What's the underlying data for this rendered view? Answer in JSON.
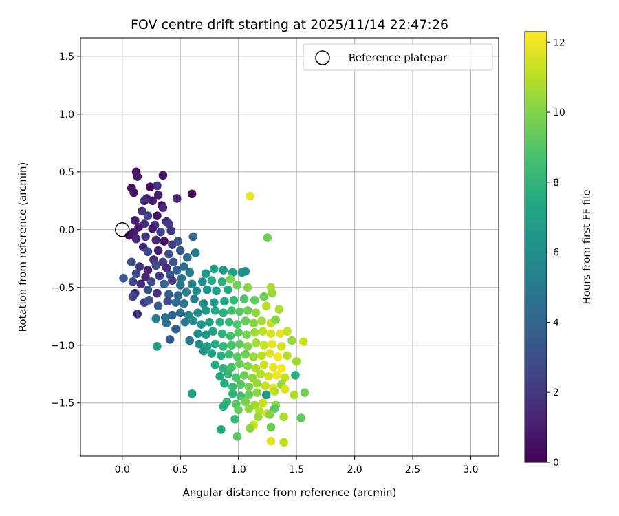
{
  "chart_data": {
    "type": "scatter",
    "title": "FOV centre drift starting at 2025/11/14 22:47:26",
    "xlabel": "Angular distance from reference (arcmin)",
    "ylabel": "Rotation from reference (arcmin)",
    "xlim": [
      -0.36,
      3.24
    ],
    "ylim": [
      -1.96,
      1.66
    ],
    "xticks": [
      0.0,
      0.5,
      1.0,
      1.5,
      2.0,
      2.5,
      3.0
    ],
    "xtick_labels": [
      "0.0",
      "0.5",
      "1.0",
      "1.5",
      "2.0",
      "2.5",
      "3.0"
    ],
    "yticks": [
      -1.5,
      -1.0,
      -0.5,
      0.0,
      0.5,
      1.0,
      1.5
    ],
    "ytick_labels": [
      "−1.5",
      "−1.0",
      "−0.5",
      "0.0",
      "0.5",
      "1.0",
      "1.5"
    ],
    "grid": true,
    "legend": {
      "position": "top-right",
      "entries": [
        {
          "label": "Reference platepar",
          "marker": "open-circle"
        }
      ]
    },
    "reference_point": {
      "x": 0.0,
      "y": 0.0
    },
    "colorbar": {
      "label": "Hours from first FF file",
      "colormap": "viridis",
      "range": [
        0,
        12.3
      ],
      "ticks": [
        0,
        2,
        4,
        6,
        8,
        10,
        12
      ],
      "tick_labels": [
        "0",
        "2",
        "4",
        "6",
        "8",
        "10",
        "12"
      ]
    },
    "points": [
      [
        0.12,
        0.5,
        0.5
      ],
      [
        0.35,
        0.47,
        0.7
      ],
      [
        0.13,
        0.46,
        0.8
      ],
      [
        0.08,
        0.36,
        0.4
      ],
      [
        0.24,
        0.37,
        0.3
      ],
      [
        0.1,
        0.32,
        0.6
      ],
      [
        0.3,
        0.38,
        1.9
      ],
      [
        0.6,
        0.31,
        0.2
      ],
      [
        0.31,
        0.3,
        1.0
      ],
      [
        0.21,
        0.27,
        1.3
      ],
      [
        0.19,
        0.25,
        1.6
      ],
      [
        0.26,
        0.25,
        0.9
      ],
      [
        0.47,
        0.27,
        1.2
      ],
      [
        0.34,
        0.21,
        0.3
      ],
      [
        0.17,
        0.16,
        1.8
      ],
      [
        0.35,
        0.19,
        1.4
      ],
      [
        0.22,
        0.12,
        2.4
      ],
      [
        0.11,
        0.08,
        1.1
      ],
      [
        0.3,
        0.12,
        0.6
      ],
      [
        0.38,
        0.07,
        1.5
      ],
      [
        0.4,
        0.05,
        2.1
      ],
      [
        0.28,
        0.04,
        2.0
      ],
      [
        0.19,
        0.05,
        1.7
      ],
      [
        0.14,
        0.02,
        0.8
      ],
      [
        0.26,
        0.01,
        1.0
      ],
      [
        0.33,
        -0.02,
        2.5
      ],
      [
        0.42,
        -0.01,
        1.9
      ],
      [
        0.1,
        -0.02,
        0.9
      ],
      [
        0.06,
        -0.05,
        0.7
      ],
      [
        0.12,
        -0.08,
        1.3
      ],
      [
        0.2,
        -0.06,
        2.0
      ],
      [
        0.29,
        -0.09,
        1.6
      ],
      [
        0.36,
        -0.1,
        0.5
      ],
      [
        0.48,
        -0.1,
        3.2
      ],
      [
        0.61,
        -0.06,
        4.1
      ],
      [
        0.43,
        -0.13,
        2.2
      ],
      [
        0.18,
        -0.15,
        1.4
      ],
      [
        0.22,
        -0.19,
        2.6
      ],
      [
        0.31,
        -0.18,
        1.1
      ],
      [
        0.4,
        -0.21,
        2.8
      ],
      [
        0.5,
        -0.18,
        3.4
      ],
      [
        0.63,
        -0.2,
        4.9
      ],
      [
        0.56,
        -0.24,
        4.2
      ],
      [
        0.27,
        -0.26,
        1.7
      ],
      [
        0.35,
        -0.28,
        2.3
      ],
      [
        0.44,
        -0.28,
        3.1
      ],
      [
        0.08,
        -0.28,
        3.0
      ],
      [
        0.15,
        -0.32,
        1.9
      ],
      [
        0.22,
        -0.35,
        1.2
      ],
      [
        0.29,
        -0.31,
        2.9
      ],
      [
        0.38,
        -0.33,
        1.5
      ],
      [
        0.47,
        -0.35,
        3.7
      ],
      [
        0.53,
        -0.32,
        4.4
      ],
      [
        0.12,
        -0.38,
        2.7
      ],
      [
        0.2,
        -0.41,
        1.3
      ],
      [
        0.32,
        -0.4,
        2.2
      ],
      [
        0.41,
        -0.39,
        3.3
      ],
      [
        0.51,
        -0.42,
        4.6
      ],
      [
        0.58,
        -0.37,
        5.1
      ],
      [
        0.01,
        -0.42,
        3.6
      ],
      [
        0.09,
        -0.45,
        2.4
      ],
      [
        0.16,
        -0.47,
        1.6
      ],
      [
        0.25,
        -0.45,
        2.7
      ],
      [
        0.36,
        -0.47,
        3.9
      ],
      [
        0.43,
        -0.44,
        2.0
      ],
      [
        0.5,
        -0.48,
        4.7
      ],
      [
        0.6,
        -0.47,
        5.5
      ],
      [
        0.69,
        -0.45,
        6.0
      ],
      [
        0.72,
        -0.38,
        6.6
      ],
      [
        0.79,
        -0.34,
        6.9
      ],
      [
        0.87,
        -0.35,
        6.4
      ],
      [
        0.95,
        -0.37,
        7.1
      ],
      [
        1.03,
        -0.37,
        6.2
      ],
      [
        0.77,
        -0.44,
        7.4
      ],
      [
        0.86,
        -0.45,
        7.8
      ],
      [
        0.93,
        -0.43,
        9.9
      ],
      [
        0.11,
        -0.55,
        1.5
      ],
      [
        0.09,
        -0.58,
        2.6
      ],
      [
        0.22,
        -0.52,
        3.3
      ],
      [
        0.3,
        -0.55,
        1.8
      ],
      [
        0.4,
        -0.56,
        3.6
      ],
      [
        0.48,
        -0.57,
        4.1
      ],
      [
        0.55,
        -0.54,
        5.2
      ],
      [
        0.64,
        -0.53,
        5.8
      ],
      [
        0.73,
        -0.52,
        6.3
      ],
      [
        0.81,
        -0.53,
        7.0
      ],
      [
        0.91,
        -0.52,
        7.5
      ],
      [
        0.99,
        -0.48,
        9.5
      ],
      [
        1.08,
        -0.5,
        10.2
      ],
      [
        1.28,
        -0.5,
        10.8
      ],
      [
        0.19,
        -0.63,
        2.2
      ],
      [
        0.23,
        -0.61,
        3.0
      ],
      [
        0.31,
        -0.66,
        3.6
      ],
      [
        0.39,
        -0.62,
        2.7
      ],
      [
        0.46,
        -0.63,
        4.4
      ],
      [
        0.53,
        -0.64,
        4.9
      ],
      [
        0.62,
        -0.6,
        5.3
      ],
      [
        0.7,
        -0.64,
        6.1
      ],
      [
        0.79,
        -0.63,
        6.7
      ],
      [
        0.88,
        -0.62,
        7.3
      ],
      [
        0.96,
        -0.61,
        8.1
      ],
      [
        1.05,
        -0.6,
        8.8
      ],
      [
        1.14,
        -0.61,
        9.3
      ],
      [
        1.22,
        -0.58,
        9.7
      ],
      [
        1.29,
        -0.55,
        10.4
      ],
      [
        0.13,
        -0.73,
        1.9
      ],
      [
        0.29,
        -0.77,
        5.1
      ],
      [
        0.37,
        -0.76,
        4.6
      ],
      [
        0.43,
        -0.74,
        3.8
      ],
      [
        0.5,
        -0.72,
        4.3
      ],
      [
        0.57,
        -0.74,
        5.4
      ],
      [
        0.65,
        -0.72,
        6.0
      ],
      [
        0.72,
        -0.7,
        6.6
      ],
      [
        0.8,
        -0.7,
        7.2
      ],
      [
        0.87,
        -0.72,
        7.8
      ],
      [
        0.94,
        -0.7,
        8.5
      ],
      [
        1.01,
        -0.71,
        9.0
      ],
      [
        1.08,
        -0.7,
        9.6
      ],
      [
        1.15,
        -0.72,
        10.3
      ],
      [
        1.24,
        -0.66,
        11.0
      ],
      [
        1.35,
        -0.69,
        10.7
      ],
      [
        0.38,
        -0.81,
        4.5
      ],
      [
        0.46,
        -0.86,
        3.9
      ],
      [
        0.54,
        -0.8,
        4.8
      ],
      [
        0.61,
        -0.79,
        5.7
      ],
      [
        0.68,
        -0.82,
        6.3
      ],
      [
        0.75,
        -0.8,
        6.9
      ],
      [
        0.84,
        -0.8,
        7.6
      ],
      [
        0.92,
        -0.8,
        8.2
      ],
      [
        0.99,
        -0.82,
        8.9
      ],
      [
        1.06,
        -0.79,
        9.4
      ],
      [
        1.13,
        -0.81,
        10.1
      ],
      [
        1.2,
        -0.79,
        10.6
      ],
      [
        1.28,
        -0.81,
        11.3
      ],
      [
        1.32,
        -0.78,
        10.0
      ],
      [
        0.41,
        -0.95,
        3.4
      ],
      [
        0.58,
        -0.96,
        4.7
      ],
      [
        0.65,
        -0.9,
        5.9
      ],
      [
        0.72,
        -0.91,
        6.5
      ],
      [
        0.78,
        -0.88,
        7.1
      ],
      [
        0.86,
        -0.9,
        7.8
      ],
      [
        0.93,
        -0.92,
        8.6
      ],
      [
        1.0,
        -0.89,
        9.2
      ],
      [
        1.07,
        -0.91,
        9.8
      ],
      [
        1.14,
        -0.89,
        10.5
      ],
      [
        1.21,
        -0.88,
        11.1
      ],
      [
        1.28,
        -0.9,
        11.6
      ],
      [
        1.36,
        -0.9,
        11.9
      ],
      [
        1.42,
        -0.88,
        11.2
      ],
      [
        0.3,
        -1.01,
        6.7
      ],
      [
        0.66,
        -0.99,
        6.0
      ],
      [
        0.73,
        -1.01,
        6.8
      ],
      [
        0.8,
        -0.99,
        7.4
      ],
      [
        0.87,
        -1.01,
        8.1
      ],
      [
        0.94,
        -1.0,
        8.7
      ],
      [
        1.01,
        -0.99,
        9.3
      ],
      [
        1.08,
        -1.01,
        10.0
      ],
      [
        1.15,
        -0.98,
        10.6
      ],
      [
        1.22,
        -1.0,
        11.3
      ],
      [
        1.29,
        -0.99,
        11.9
      ],
      [
        1.37,
        -1.01,
        11.5
      ],
      [
        1.46,
        -0.96,
        10.4
      ],
      [
        1.56,
        -0.97,
        11.4
      ],
      [
        0.7,
        -1.05,
        6.4
      ],
      [
        0.77,
        -1.07,
        7.0
      ],
      [
        0.85,
        -1.09,
        7.7
      ],
      [
        0.92,
        -1.08,
        8.4
      ],
      [
        0.99,
        -1.1,
        9.1
      ],
      [
        1.06,
        -1.08,
        9.7
      ],
      [
        1.13,
        -1.1,
        10.4
      ],
      [
        1.2,
        -1.09,
        11.0
      ],
      [
        1.27,
        -1.07,
        11.7
      ],
      [
        1.34,
        -1.1,
        12.1
      ],
      [
        1.42,
        -1.09,
        11.0
      ],
      [
        0.8,
        -1.17,
        7.2
      ],
      [
        0.87,
        -1.2,
        7.9
      ],
      [
        0.94,
        -1.19,
        8.7
      ],
      [
        1.01,
        -1.16,
        9.5
      ],
      [
        1.08,
        -1.18,
        10.1
      ],
      [
        1.15,
        -1.2,
        10.8
      ],
      [
        1.22,
        -1.17,
        11.4
      ],
      [
        1.3,
        -1.19,
        11.9
      ],
      [
        1.37,
        -1.2,
        12.2
      ],
      [
        1.5,
        -1.14,
        10.6
      ],
      [
        0.84,
        -1.27,
        7.4
      ],
      [
        0.91,
        -1.25,
        8.1
      ],
      [
        0.98,
        -1.28,
        8.8
      ],
      [
        1.05,
        -1.26,
        9.5
      ],
      [
        1.12,
        -1.28,
        10.2
      ],
      [
        1.19,
        -1.25,
        10.9
      ],
      [
        1.26,
        -1.27,
        11.5
      ],
      [
        1.33,
        -1.26,
        12.0
      ],
      [
        1.4,
        -1.28,
        11.2
      ],
      [
        1.49,
        -1.26,
        7.6
      ],
      [
        0.88,
        -1.33,
        7.6
      ],
      [
        0.95,
        -1.36,
        8.3
      ],
      [
        1.02,
        -1.34,
        9.0
      ],
      [
        1.09,
        -1.36,
        9.8
      ],
      [
        1.16,
        -1.33,
        10.5
      ],
      [
        1.23,
        -1.35,
        11.2
      ],
      [
        1.3,
        -1.37,
        11.8
      ],
      [
        1.37,
        -1.34,
        10.3
      ],
      [
        0.6,
        -1.42,
        7.0
      ],
      [
        0.95,
        -1.42,
        7.9
      ],
      [
        1.02,
        -1.44,
        8.6
      ],
      [
        1.09,
        -1.43,
        9.4
      ],
      [
        1.16,
        -1.41,
        10.1
      ],
      [
        1.24,
        -1.43,
        6.6
      ],
      [
        1.31,
        -1.4,
        11.0
      ],
      [
        1.4,
        -1.38,
        11.6
      ],
      [
        1.48,
        -1.43,
        10.8
      ],
      [
        1.57,
        -1.41,
        9.7
      ],
      [
        0.9,
        -1.49,
        8.1
      ],
      [
        0.98,
        -1.51,
        9.0
      ],
      [
        1.06,
        -1.49,
        9.8
      ],
      [
        1.14,
        -1.52,
        10.6
      ],
      [
        1.21,
        -1.5,
        11.3
      ],
      [
        1.32,
        -1.52,
        10.1
      ],
      [
        0.87,
        -1.53,
        7.7
      ],
      [
        1.0,
        -1.56,
        9.4
      ],
      [
        1.09,
        -1.55,
        10.3
      ],
      [
        1.18,
        -1.57,
        11.0
      ],
      [
        1.25,
        -1.59,
        11.6
      ],
      [
        1.31,
        -1.55,
        9.1
      ],
      [
        1.17,
        -1.62,
        10.4
      ],
      [
        1.27,
        -1.6,
        10.0
      ],
      [
        1.39,
        -1.62,
        10.7
      ],
      [
        1.54,
        -1.63,
        9.3
      ],
      [
        0.97,
        -1.64,
        8.2
      ],
      [
        1.13,
        -1.69,
        11.3
      ],
      [
        1.1,
        -1.72,
        10.2
      ],
      [
        1.28,
        -1.71,
        9.6
      ],
      [
        0.85,
        -1.73,
        7.3
      ],
      [
        0.99,
        -1.79,
        9.0
      ],
      [
        1.28,
        -1.83,
        11.7
      ],
      [
        1.39,
        -1.84,
        11.1
      ],
      [
        1.1,
        0.29,
        11.9
      ],
      [
        1.25,
        -0.07,
        9.6
      ],
      [
        1.06,
        -0.36,
        6.0
      ]
    ]
  }
}
